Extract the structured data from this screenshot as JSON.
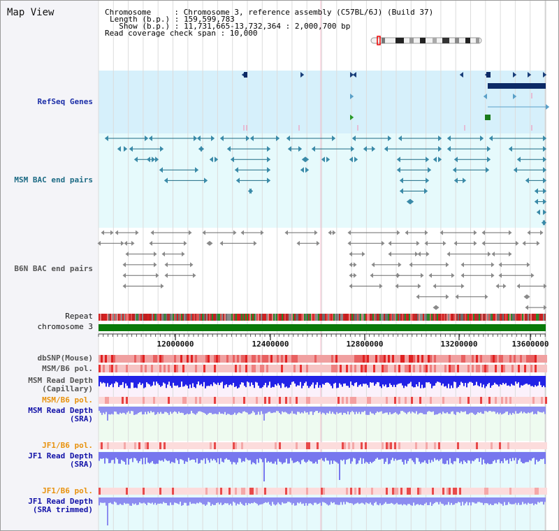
{
  "view": {
    "title": "Map View",
    "chromosome_line": "Chromosome     : Chromosome 3, reference assembly (C57BL/6J) (Build 37)",
    "length_line": "Length (b.p.) : 159,599,783",
    "show_line": "  Show (b.p.) : 11,731,665-13,732,364 : 2,000,700 bp",
    "coverage_line": "Read coverage check span : 10,000"
  },
  "tracks": {
    "refseq": "RefSeq Genes",
    "msm_bac": "MSM BAC end pairs",
    "b6n_bac": "B6N BAC end pairs",
    "repeat": "Repeat",
    "chromosome": "chromosome 3",
    "dbsnp": "dbSNP(Mouse)",
    "msm_pol": "MSM/B6 pol.",
    "msm_depth_cap": "MSM Read Depth\n(Capillary)",
    "msm_pol2": "MSM/B6 pol.",
    "msm_depth_sra": "MSM Read Depth\n(SRA)",
    "jf1_pol": "JF1/B6 pol.",
    "jf1_depth_sra": "JF1 Read Depth\n(SRA)",
    "jf1_pol2": "JF1/B6 pol.",
    "jf1_depth_trim": "JF1 Read Depth\n(SRA trimmed)"
  },
  "axis": {
    "ticks": [
      "12000000",
      "12400000",
      "12800000",
      "13200000",
      "13600000"
    ]
  },
  "colors": {
    "refseq_bg": "#d6f0fb",
    "msm_bg": "#e6fafc",
    "msm_label": "#1c6a84",
    "refseq_label": "#1d2fa8",
    "orange_label": "#e8920e",
    "blue_label": "#1212a8",
    "chromosome_band": "#0a7a0a",
    "depth_blue": "#2222e6",
    "depth_light": "#8c8cf0"
  }
}
